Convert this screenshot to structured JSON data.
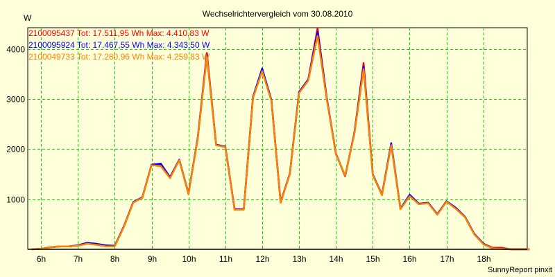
{
  "chart_data": {
    "type": "line",
    "title": "Wechselrichtervergleich vom 30.08.2010",
    "ylabel": "W",
    "xlabel": "",
    "footer": "SunnyReport pinxit",
    "xlim": [
      5.64,
      19.19
    ],
    "ylim": [
      0,
      4400
    ],
    "grid": true,
    "legend_placement": "top-left",
    "x_ticks": [
      6,
      7,
      8,
      9,
      10,
      11,
      12,
      13,
      14,
      15,
      16,
      17,
      18
    ],
    "x_tick_labels": [
      "6h",
      "7h",
      "8h",
      "9h",
      "10h",
      "11h",
      "12h",
      "13h",
      "14h",
      "15h",
      "16h",
      "17h",
      "18h"
    ],
    "y_ticks": [
      1000,
      2000,
      3000,
      4000
    ],
    "y_tick_labels": [
      "1000",
      "2000",
      "3000",
      "4000"
    ],
    "x": [
      5.75,
      6.0,
      6.25,
      6.5,
      6.75,
      7.0,
      7.25,
      7.5,
      7.75,
      8.0,
      8.25,
      8.5,
      8.75,
      9.0,
      9.25,
      9.5,
      9.75,
      10.0,
      10.25,
      10.5,
      10.75,
      11.0,
      11.25,
      11.5,
      11.75,
      12.0,
      12.25,
      12.5,
      12.75,
      13.0,
      13.25,
      13.5,
      13.75,
      14.0,
      14.25,
      14.5,
      14.75,
      15.0,
      15.25,
      15.5,
      15.75,
      16.0,
      16.25,
      16.5,
      16.75,
      17.0,
      17.25,
      17.5,
      17.75,
      18.0,
      18.25,
      18.5,
      18.75,
      19.0,
      19.25
    ],
    "series": [
      {
        "name": "2100095437",
        "legend": "2100095437 Tot: 17.511,95 Wh Max: 4.410,83 W",
        "color": "#FF0000",
        "values": [
          0,
          10,
          40,
          60,
          60,
          75,
          120,
          100,
          70,
          65,
          460,
          940,
          1040,
          1690,
          1690,
          1440,
          1790,
          1110,
          2220,
          3920,
          2090,
          2050,
          800,
          800,
          3040,
          3590,
          2980,
          940,
          1510,
          3140,
          3390,
          4410,
          3030,
          1910,
          1460,
          2320,
          3720,
          1490,
          1090,
          2100,
          810,
          1080,
          910,
          930,
          700,
          960,
          830,
          650,
          310,
          110,
          30,
          30,
          0,
          0,
          0
        ]
      },
      {
        "name": "2100095924",
        "legend": "2100095924 Tot: 17.467,55 Wh Max: 4.343,50 W",
        "color": "#0000FF",
        "values": [
          0,
          10,
          40,
          60,
          60,
          80,
          130,
          110,
          80,
          70,
          460,
          940,
          1040,
          1690,
          1710,
          1440,
          1790,
          1110,
          2220,
          3880,
          2090,
          2050,
          800,
          800,
          3040,
          3610,
          2980,
          940,
          1510,
          3140,
          3390,
          4340,
          3030,
          1910,
          1460,
          2320,
          3650,
          1490,
          1090,
          2120,
          810,
          1090,
          910,
          930,
          700,
          960,
          830,
          650,
          310,
          110,
          20,
          10,
          0,
          0,
          0
        ]
      },
      {
        "name": "2100049733",
        "legend": "2100049733 Tot: 17.280,96 Wh Max: 4.259,83 W",
        "color": "#FF8000",
        "values": [
          0,
          10,
          40,
          60,
          60,
          70,
          110,
          90,
          60,
          60,
          450,
          930,
          1030,
          1680,
          1660,
          1420,
          1780,
          1100,
          2200,
          3850,
          2080,
          2040,
          790,
          790,
          3020,
          3560,
          2960,
          930,
          1500,
          3120,
          3370,
          4260,
          3000,
          1900,
          1470,
          2300,
          3600,
          1480,
          1080,
          2080,
          800,
          1060,
          900,
          920,
          690,
          950,
          810,
          640,
          300,
          100,
          20,
          10,
          0,
          0,
          0
        ]
      }
    ]
  }
}
